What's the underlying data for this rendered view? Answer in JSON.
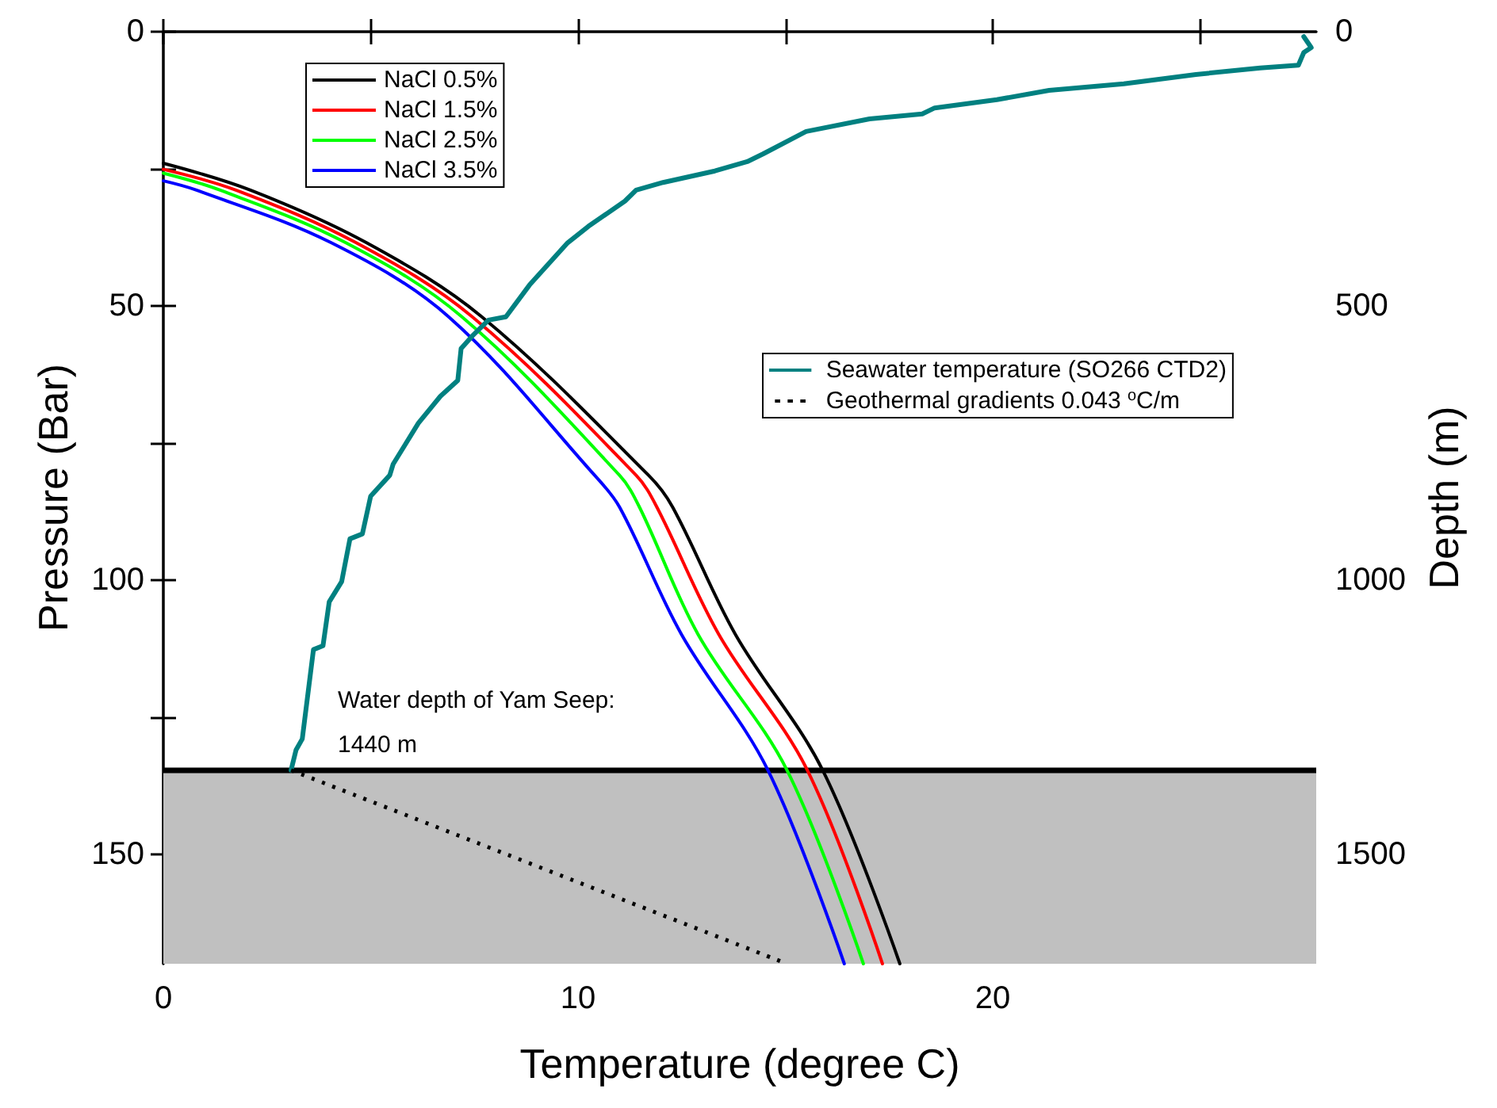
{
  "chart_data": {
    "type": "line",
    "xlabel": "Temperature (degree C)",
    "ylabel": "Pressure (Bar)",
    "y2label": "Depth (m)",
    "xlim": [
      0,
      27.8
    ],
    "xticks": [
      0,
      10,
      20
    ],
    "ylim": [
      170,
      0
    ],
    "yticks": [
      0,
      50,
      100,
      150
    ],
    "y2lim": [
      1700,
      0
    ],
    "y2ticks": [
      0,
      500,
      1000,
      1500
    ],
    "grid": false,
    "legend": "top left",
    "marker": "none",
    "line_style": "solid",
    "series": [
      {
        "name": "NaCl 0.5%",
        "color": "#000000",
        "x": [
          0,
          2.1,
          4.9,
          7.68,
          11.7,
          12.28,
          13.8,
          15.9,
          17.76
        ],
        "values": [
          24,
          28.9,
          38.5,
          52,
          80.9,
          86.7,
          110,
          134.7,
          170
        ]
      },
      {
        "name": "NaCl 1.5%",
        "color": "#ff0000",
        "x": [
          0,
          1.75,
          4.65,
          7.45,
          11.4,
          11.9,
          13.4,
          15.53,
          17.34
        ],
        "values": [
          25.1,
          28.9,
          38.5,
          52,
          80.9,
          86.7,
          110,
          134.7,
          170
        ]
      },
      {
        "name": "NaCl 2.5%",
        "color": "#00ff00",
        "x": [
          0,
          1.37,
          4.4,
          7.2,
          11,
          11.48,
          12.9,
          15.04,
          16.88
        ],
        "values": [
          25.8,
          28.9,
          38.5,
          52,
          80.9,
          86.7,
          110,
          134.7,
          170
        ]
      },
      {
        "name": "NaCl 3.5%",
        "color": "#0000ff",
        "x": [
          0,
          0.8,
          4.05,
          6.88,
          10.4,
          11,
          12.5,
          14.58,
          16.42
        ],
        "values": [
          27.2,
          28.9,
          38.5,
          52,
          80.9,
          86.7,
          110,
          134.7,
          170
        ]
      },
      {
        "name": "Seawater temperature (SO266 CTD2)",
        "color": "#008080",
        "x": [
          3.08,
          3.2,
          3.35,
          3.62,
          3.85,
          4,
          4.3,
          4.5,
          4.8,
          5,
          5.46,
          5.54,
          6.15,
          6.68,
          7.1,
          7.18,
          7.45,
          7.84,
          8.26,
          8.83,
          9.75,
          10.25,
          11.13,
          11.4,
          12.05,
          13.3,
          14.08,
          14.46,
          15.5,
          17.03,
          18.3,
          18.6,
          20.1,
          21.36,
          23.16,
          24.9,
          26.45,
          27.37,
          27.5,
          27.68,
          27.5
        ],
        "values": [
          134.7,
          131,
          129,
          112.7,
          112,
          104,
          100.3,
          92.5,
          91.6,
          84.7,
          80.9,
          78.9,
          71.4,
          66.5,
          63.6,
          57.8,
          55.5,
          52.6,
          52,
          46.2,
          38.5,
          35.5,
          30.9,
          28.9,
          27.5,
          25.4,
          23.7,
          22.3,
          18.2,
          15.9,
          15,
          13.9,
          12.4,
          10.7,
          9.5,
          7.8,
          6.6,
          6.1,
          3.8,
          2.9,
          0.9
        ]
      },
      {
        "name": "Geothermal gradients 0.043 $^{o}$C/m",
        "color": "#000000",
        "line_style": "dotted",
        "x": [
          3.08,
          15.04
        ],
        "values": [
          134.7,
          170
        ]
      }
    ],
    "annotations": [
      "Water depth of Yam Seep:\n1440 m"
    ],
    "ref_lines": [
      {
        "axis": "y",
        "value": 134.7,
        "color": "#000000"
      }
    ],
    "bands": [
      {
        "axis": "y",
        "from": 134.7,
        "to": 170,
        "color": "#c0c0c0"
      }
    ]
  }
}
